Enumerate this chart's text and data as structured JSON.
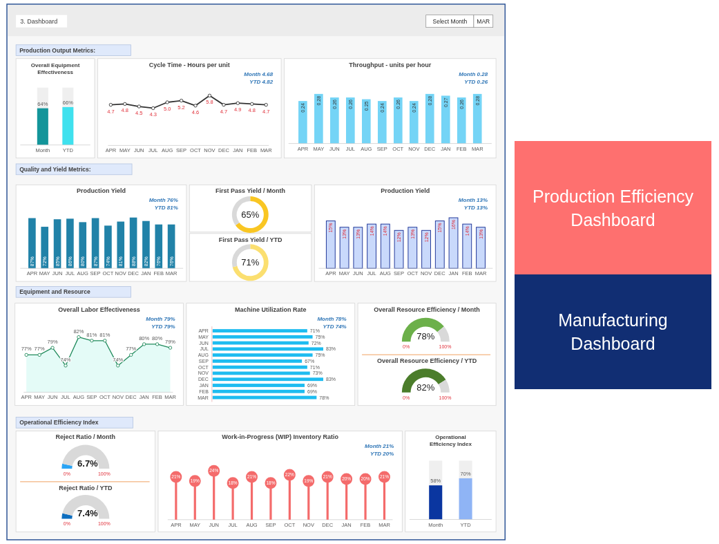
{
  "chart_data": [
    {
      "type": "other",
      "title": "3. Dashboard",
      "annotations": [
        "Select Month",
        "MAR"
      ]
    },
    {
      "type": "other",
      "title": "Production Output Metrics:"
    },
    {
      "type": "bar",
      "title": "Overall Equipment Effectiveness",
      "categories": [
        "Month",
        "YTD"
      ],
      "values": [
        64,
        66
      ],
      "colors": [
        "#13959a",
        "#3fe1ee"
      ],
      "value_labels": [
        "64%",
        "66%"
      ],
      "ylim": [
        0,
        100
      ]
    },
    {
      "type": "line",
      "title": "Cycle Time - Hours per unit",
      "annotations": [
        "Month 4.68",
        "YTD 4.82"
      ],
      "categories": [
        "APR",
        "MAY",
        "JUN",
        "JUL",
        "AUG",
        "SEP",
        "OCT",
        "NOV",
        "DEC",
        "JAN",
        "FEB",
        "MAR"
      ],
      "values": [
        4.7,
        4.8,
        4.5,
        4.3,
        5.0,
        5.2,
        4.6,
        5.8,
        4.7,
        4.9,
        4.8,
        4.7
      ],
      "value_labels": [
        "4.7",
        "4.8",
        "4.5",
        "4.3",
        "5.0",
        "5.2",
        "4.6",
        "5.8",
        "4.7",
        "4.9",
        "4.8",
        "4.7"
      ],
      "color": "#333333",
      "marker": "circle"
    },
    {
      "type": "bar",
      "title": "Throughput - units per hour",
      "annotations": [
        "Month 0.28",
        "YTD 0.26"
      ],
      "categories": [
        "APR",
        "MAY",
        "JUN",
        "JUL",
        "AUG",
        "SEP",
        "OCT",
        "NOV",
        "DEC",
        "JAN",
        "FEB",
        "MAR"
      ],
      "values": [
        0.24,
        0.28,
        0.26,
        0.26,
        0.25,
        0.24,
        0.26,
        0.24,
        0.28,
        0.27,
        0.26,
        0.28
      ],
      "value_labels": [
        "0.24",
        "0.28",
        "0.26",
        "0.26",
        "0.25",
        "0.24",
        "0.26",
        "0.24",
        "0.28",
        "0.27",
        "0.26",
        "0.28"
      ],
      "color": "#74d4f6"
    },
    {
      "type": "other",
      "title": "Quality and Yield Metrics:"
    },
    {
      "type": "bar",
      "title": "Production Yield",
      "annotations": [
        "Month 76%",
        "YTD 81%"
      ],
      "categories": [
        "APR",
        "MAY",
        "JUN",
        "JUL",
        "AUG",
        "SEP",
        "OCT",
        "NOV",
        "DEC",
        "JAN",
        "FEB",
        "MAR"
      ],
      "values": [
        87,
        72,
        85,
        86,
        80,
        87,
        74,
        81,
        88,
        82,
        76,
        76
      ],
      "value_labels": [
        "87%",
        "72%",
        "85%",
        "86%",
        "80%",
        "87%",
        "74%",
        "81%",
        "88%",
        "82%",
        "76%",
        "76%"
      ],
      "color": "#2182a8"
    },
    {
      "type": "donut",
      "title": "First Pass Yield / Month",
      "categories": [
        null,
        null
      ],
      "values": [
        65,
        35
      ],
      "colors": [
        "#f9c623",
        "#d9d9d9"
      ],
      "value_labels": [
        "65%",
        null
      ]
    },
    {
      "type": "donut",
      "title": "First Pass Yield / YTD",
      "categories": [
        null,
        null
      ],
      "values": [
        71,
        29
      ],
      "colors": [
        "#fbdf70",
        "#d9d9d9"
      ],
      "value_labels": [
        "71%",
        null
      ]
    },
    {
      "type": "bar",
      "title": "Production Yield",
      "annotations": [
        "Month 13%",
        "YTD 13%"
      ],
      "categories": [
        "APR",
        "MAY",
        "JUN",
        "JUL",
        "AUG",
        "SEP",
        "OCT",
        "NOV",
        "DEC",
        "JAN",
        "FEB",
        "MAR"
      ],
      "values": [
        15,
        13,
        13,
        14,
        14,
        12,
        13,
        12,
        15,
        16,
        14,
        13
      ],
      "value_labels": [
        "15%",
        "13%",
        "13%",
        "14%",
        "14%",
        "12%",
        "13%",
        "12%",
        "15%",
        "16%",
        "14%",
        "13%"
      ],
      "color": "#c9d9fb"
    },
    {
      "type": "other",
      "title": "Equipment and Resource"
    },
    {
      "type": "area",
      "title": "Overall Labor Effectiveness",
      "annotations": [
        "Month 79%",
        "YTD 79%"
      ],
      "categories": [
        "APR",
        "MAY",
        "JUN",
        "JUL",
        "AUG",
        "SEP",
        "OCT",
        "NOV",
        "DEC",
        "JAN",
        "FEB",
        "MAR"
      ],
      "values": [
        77,
        77,
        79,
        74,
        82,
        81,
        81,
        74,
        77,
        80,
        80,
        79
      ],
      "value_labels": [
        "77%",
        "77%",
        "79%",
        "74%",
        "82%",
        "81%",
        "81%",
        "74%",
        "77%",
        "80%",
        "80%",
        "79%"
      ],
      "color": "#1f8a5b",
      "marker": "circle"
    },
    {
      "type": "bar",
      "orientation": "horizontal",
      "title": "Machine Utilization Rate",
      "annotations": [
        "Month 78%",
        "YTD 74%"
      ],
      "categories": [
        "APR",
        "MAY",
        "JUN",
        "JUL",
        "AUG",
        "SEP",
        "OCT",
        "NOV",
        "DEC",
        "JAN",
        "FEB",
        "MAR"
      ],
      "values": [
        71,
        75,
        72,
        83,
        75,
        67,
        71,
        73,
        83,
        69,
        69,
        78
      ],
      "value_labels": [
        "71%",
        "75%",
        "72%",
        "83%",
        "75%",
        "67%",
        "71%",
        "73%",
        "83%",
        "69%",
        "69%",
        "78%"
      ],
      "color": "#1ebcf0"
    },
    {
      "type": "donut",
      "title": "Overall Resource Efficiency  / Month",
      "categories": [
        null,
        null
      ],
      "values": [
        78,
        22
      ],
      "colors": [
        "#6cb04a",
        "#d9d9d9"
      ],
      "annotations": [
        "78%",
        "0%",
        "100%"
      ]
    },
    {
      "type": "donut",
      "title": "Overall Resource Efficiency / YTD",
      "categories": [
        null,
        null
      ],
      "values": [
        82,
        18
      ],
      "colors": [
        "#4b7d2b",
        "#d9d9d9"
      ],
      "annotations": [
        "82%",
        "0%",
        "100%"
      ]
    },
    {
      "type": "other",
      "title": "Operational Efficiency Index"
    },
    {
      "type": "donut",
      "title": "Reject Ratio / Month",
      "categories": [
        null,
        null
      ],
      "values": [
        6.7,
        93.3
      ],
      "colors": [
        "#2ba4f4",
        "#d9d9d9"
      ],
      "annotations": [
        "6.7%",
        "0%",
        "100%"
      ]
    },
    {
      "type": "donut",
      "title": "Reject Ratio / YTD",
      "categories": [
        null,
        null
      ],
      "values": [
        7.4,
        92.6
      ],
      "colors": [
        "#0e6ebf",
        "#d9d9d9"
      ],
      "annotations": [
        "7.4%",
        "0%",
        "100%"
      ]
    },
    {
      "type": "lollipop",
      "title": "Work-in-Progress (WIP) Inventory Ratio",
      "annotations": [
        "Month 21%",
        "YTD 20%"
      ],
      "categories": [
        "APR",
        "MAY",
        "JUN",
        "JUL",
        "AUG",
        "SEP",
        "OCT",
        "NOV",
        "DEC",
        "JAN",
        "FEB",
        "MAR"
      ],
      "values": [
        21,
        19,
        24,
        18,
        21,
        18,
        22,
        19,
        21,
        20,
        20,
        21
      ],
      "value_labels": [
        "21%",
        "19%",
        "24%",
        "18%",
        "21%",
        "18%",
        "22%",
        "19%",
        "21%",
        "20%",
        "20%",
        "21%"
      ],
      "color": "#f46b6b"
    },
    {
      "type": "bar",
      "title": "Operational Efficiency Index",
      "categories": [
        "Month",
        "YTD"
      ],
      "values": [
        58,
        70
      ],
      "colors": [
        "#0a36a0",
        "#8fb4f5"
      ],
      "value_labels": [
        "58%",
        "70%"
      ],
      "ylim": [
        0,
        100
      ]
    },
    {
      "type": "other",
      "title": "Production Efficiency Dashboard",
      "subtitle": "Manufacturing Dashboard"
    }
  ]
}
